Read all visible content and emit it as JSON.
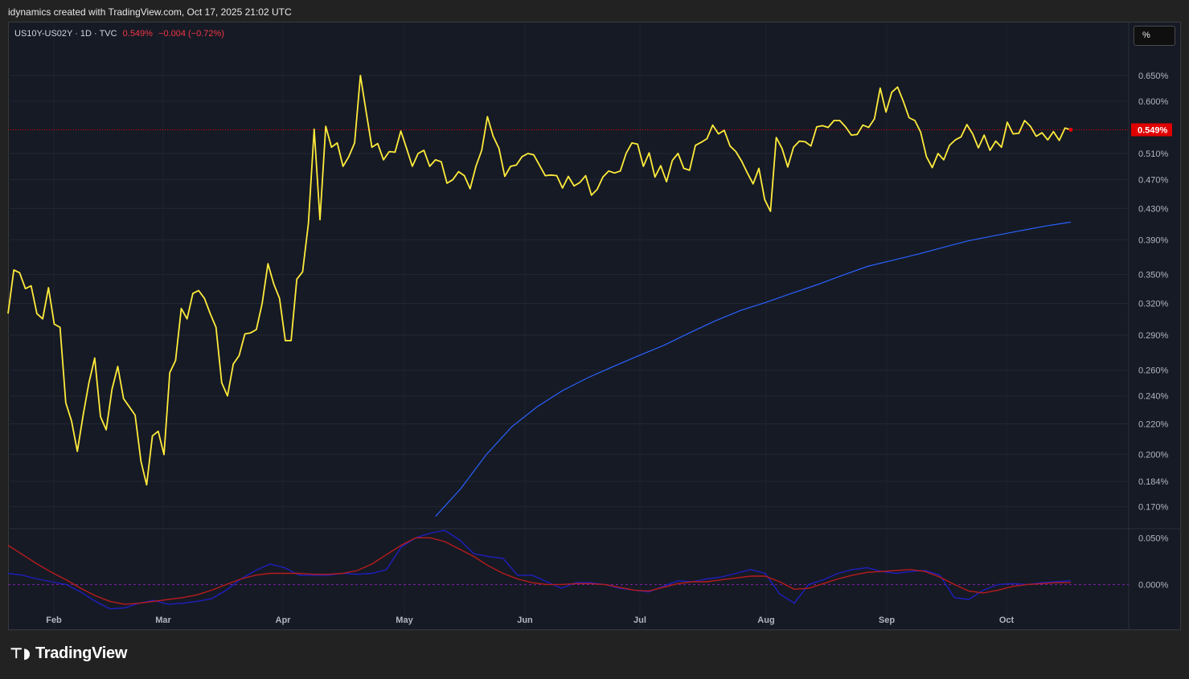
{
  "header": {
    "caption": "idynamics created with TradingView.com, Oct 17, 2025 21:02 UTC"
  },
  "legend": {
    "symbol": "US10Y-US02Y · 1D · TVC",
    "last": "0.549%",
    "change": "−0.004 (−0.72%)"
  },
  "unit_button": {
    "label": "%"
  },
  "footer": {
    "brand": "TradingView"
  },
  "colors": {
    "background": "#161a25",
    "price": "#ffeb3b",
    "ma": "#2962ff",
    "osc_blue": "#1f1fbf",
    "osc_red": "#b71c1c",
    "last_tag": "#e00000"
  },
  "chart_data": {
    "type": "line",
    "scale": "log",
    "x_labels": [
      "Feb",
      "Mar",
      "Apr",
      "May",
      "Jun",
      "Jul",
      "Aug",
      "Sep",
      "Oct"
    ],
    "y_ticks": [
      "0.650%",
      "0.600%",
      "0.510%",
      "0.470%",
      "0.430%",
      "0.390%",
      "0.350%",
      "0.320%",
      "0.290%",
      "0.260%",
      "0.240%",
      "0.220%",
      "0.200%",
      "0.184%",
      "0.170%"
    ],
    "y_tick_values": [
      0.65,
      0.6,
      0.51,
      0.47,
      0.43,
      0.39,
      0.35,
      0.32,
      0.29,
      0.26,
      0.24,
      0.22,
      0.2,
      0.184,
      0.17
    ],
    "ylim": [
      0.16,
      0.69
    ],
    "last_value": 0.549,
    "last_label": "0.549%",
    "series": [
      {
        "name": "US10Y-US02Y",
        "color": "#ffeb3b",
        "values": [
          0.31,
          0.355,
          0.352,
          0.335,
          0.338,
          0.31,
          0.305,
          0.336,
          0.3,
          0.297,
          0.235,
          0.222,
          0.202,
          0.226,
          0.25,
          0.27,
          0.225,
          0.216,
          0.245,
          0.263,
          0.238,
          0.232,
          0.226,
          0.196,
          0.182,
          0.212,
          0.215,
          0.2,
          0.258,
          0.268,
          0.315,
          0.305,
          0.33,
          0.333,
          0.325,
          0.31,
          0.297,
          0.25,
          0.24,
          0.265,
          0.272,
          0.291,
          0.292,
          0.295,
          0.32,
          0.362,
          0.34,
          0.325,
          0.285,
          0.285,
          0.345,
          0.353,
          0.41,
          0.55,
          0.415,
          0.555,
          0.52,
          0.527,
          0.49,
          0.505,
          0.527,
          0.65,
          0.58,
          0.52,
          0.526,
          0.5,
          0.513,
          0.512,
          0.547,
          0.518,
          0.49,
          0.51,
          0.515,
          0.49,
          0.5,
          0.497,
          0.465,
          0.47,
          0.482,
          0.476,
          0.457,
          0.49,
          0.515,
          0.572,
          0.538,
          0.518,
          0.475,
          0.49,
          0.492,
          0.505,
          0.51,
          0.508,
          0.492,
          0.476,
          0.477,
          0.476,
          0.458,
          0.475,
          0.461,
          0.466,
          0.476,
          0.448,
          0.456,
          0.474,
          0.483,
          0.48,
          0.483,
          0.51,
          0.527,
          0.525,
          0.49,
          0.511,
          0.474,
          0.491,
          0.467,
          0.499,
          0.51,
          0.487,
          0.484,
          0.523,
          0.528,
          0.534,
          0.557,
          0.542,
          0.548,
          0.522,
          0.513,
          0.498,
          0.48,
          0.464,
          0.487,
          0.442,
          0.426,
          0.536,
          0.518,
          0.489,
          0.52,
          0.53,
          0.529,
          0.522,
          0.554,
          0.556,
          0.553,
          0.565,
          0.565,
          0.554,
          0.54,
          0.541,
          0.557,
          0.553,
          0.568,
          0.625,
          0.58,
          0.617,
          0.627,
          0.6,
          0.57,
          0.565,
          0.545,
          0.505,
          0.488,
          0.51,
          0.5,
          0.523,
          0.532,
          0.537,
          0.558,
          0.542,
          0.519,
          0.54,
          0.515,
          0.53,
          0.52,
          0.562,
          0.542,
          0.543,
          0.565,
          0.555,
          0.538,
          0.544,
          0.532,
          0.546,
          0.531,
          0.552,
          0.549
        ]
      },
      {
        "name": "MA",
        "color": "#2962ff",
        "x_start": 0.4,
        "values": [
          0.165,
          0.18,
          0.2,
          0.218,
          0.232,
          0.244,
          0.254,
          0.263,
          0.272,
          0.281,
          0.292,
          0.303,
          0.313,
          0.321,
          0.33,
          0.339,
          0.349,
          0.359,
          0.366,
          0.373,
          0.381,
          0.389,
          0.395,
          0.401,
          0.407,
          0.412
        ]
      }
    ],
    "oscillator": {
      "zero_label": "0.000%",
      "top_label": "0.050%",
      "range": [
        -0.028,
        0.058
      ],
      "series": [
        {
          "name": "blue",
          "color": "#1f1fbf",
          "values": [
            0.012,
            0.01,
            0.006,
            0.003,
            0.0,
            -0.008,
            -0.018,
            -0.026,
            -0.025,
            -0.02,
            -0.017,
            -0.021,
            -0.02,
            -0.018,
            -0.015,
            -0.006,
            0.006,
            0.015,
            0.022,
            0.018,
            0.01,
            0.01,
            0.01,
            0.012,
            0.011,
            0.012,
            0.016,
            0.04,
            0.05,
            0.055,
            0.058,
            0.048,
            0.033,
            0.03,
            0.028,
            0.01,
            0.01,
            0.003,
            -0.004,
            0.002,
            0.002,
            0.0,
            -0.004,
            -0.006,
            -0.008,
            -0.002,
            0.004,
            0.003,
            0.006,
            0.008,
            0.012,
            0.016,
            0.012,
            -0.01,
            -0.02,
            0.0,
            0.005,
            0.012,
            0.016,
            0.018,
            0.014,
            0.012,
            0.014,
            0.015,
            0.01,
            -0.014,
            -0.016,
            -0.006,
            0.0,
            0.001,
            0.0,
            0.002,
            0.003,
            0.004
          ]
        },
        {
          "name": "red",
          "color": "#b71c1c",
          "values": [
            0.042,
            0.032,
            0.022,
            0.013,
            0.005,
            -0.004,
            -0.012,
            -0.018,
            -0.021,
            -0.02,
            -0.018,
            -0.016,
            -0.014,
            -0.011,
            -0.006,
            0.0,
            0.006,
            0.01,
            0.012,
            0.012,
            0.012,
            0.011,
            0.011,
            0.012,
            0.015,
            0.022,
            0.032,
            0.042,
            0.05,
            0.05,
            0.046,
            0.038,
            0.03,
            0.02,
            0.012,
            0.006,
            0.002,
            0.0,
            0.0,
            0.001,
            0.001,
            0.0,
            -0.003,
            -0.006,
            -0.007,
            -0.003,
            0.001,
            0.003,
            0.003,
            0.005,
            0.007,
            0.009,
            0.009,
            0.003,
            -0.005,
            -0.004,
            0.001,
            0.006,
            0.01,
            0.013,
            0.014,
            0.015,
            0.016,
            0.014,
            0.008,
            0.0,
            -0.007,
            -0.009,
            -0.006,
            -0.002,
            0.0,
            0.001,
            0.002,
            0.002
          ]
        }
      ]
    }
  }
}
